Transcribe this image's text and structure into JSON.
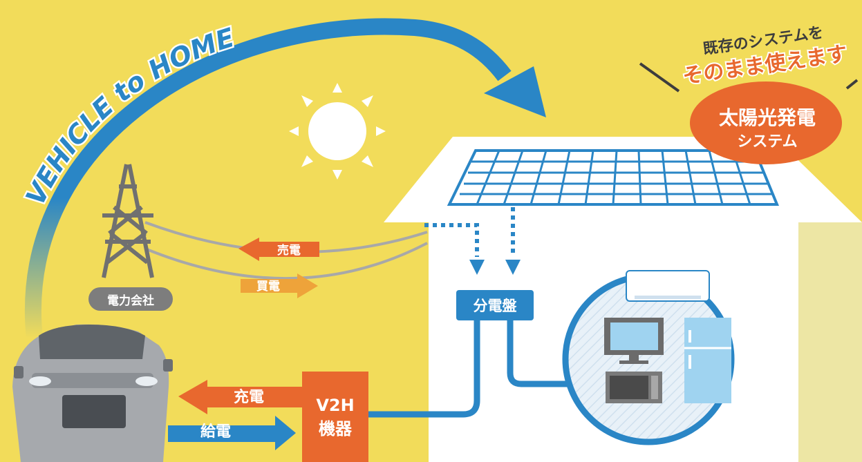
{
  "arc_title": "VEHICLE to HOME",
  "badge": {
    "line1": "既存のシステムを",
    "line2": "そのまま使えます",
    "title": "太陽光発電",
    "subtitle": "システム"
  },
  "labels": {
    "sell": "売電",
    "buy": "買電",
    "company": "電力会社",
    "panel": "分電盤",
    "charge": "充電",
    "supply": "給電",
    "v2h_line1": "V2H",
    "v2h_line2": "機器"
  },
  "colors": {
    "background": "#f2dc5a",
    "blue": "#2a86c6",
    "orange": "#e8682e",
    "light_orange": "#eea33a",
    "gray": "#7d7d7d"
  }
}
